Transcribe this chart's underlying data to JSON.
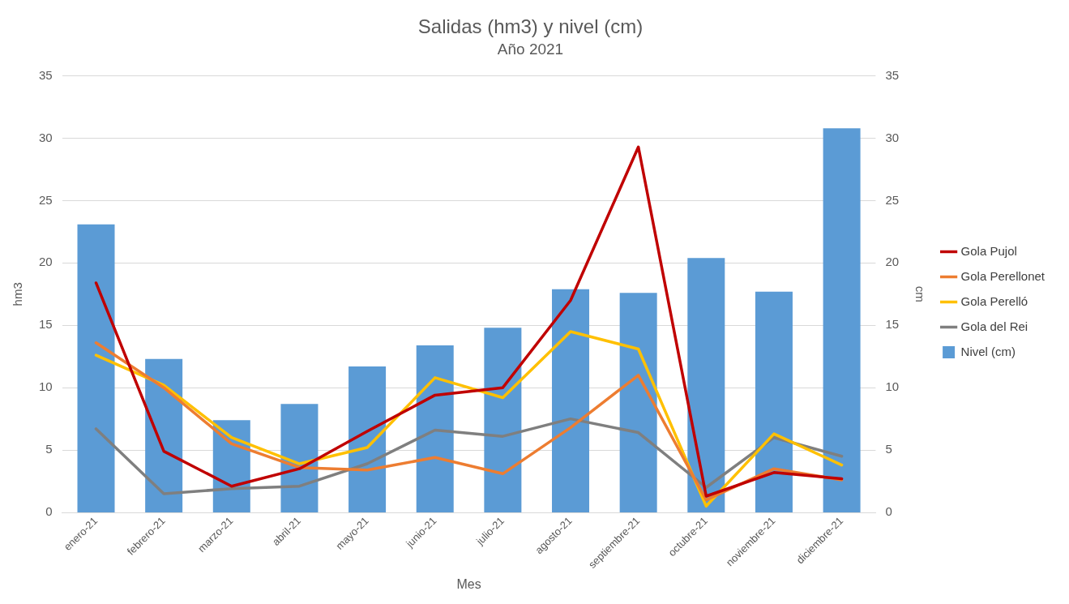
{
  "chart_data": {
    "type": "line",
    "title": "Salidas (hm3) y nivel (cm)",
    "subtitle": "Año 2021",
    "xlabel": "Mes",
    "ylabel": "hm3",
    "y2label": "cm",
    "categories": [
      "enero-21",
      "febrero-21",
      "marzo-21",
      "abril-21",
      "mayo-21",
      "junio-21",
      "julio-21",
      "agosto-21",
      "septiembre-21",
      "octubre-21",
      "noviembre-21",
      "diciembre-21"
    ],
    "series": [
      {
        "name": "Nivel (cm)",
        "type": "bar",
        "axis": "y2",
        "color": "#5b9bd5",
        "values": [
          23.1,
          12.3,
          7.4,
          8.7,
          11.7,
          13.4,
          14.8,
          17.9,
          17.6,
          20.4,
          17.7,
          30.8
        ]
      },
      {
        "name": "Gola Pujol",
        "color": "#c00000",
        "values": [
          18.4,
          4.9,
          2.1,
          3.5,
          6.5,
          9.4,
          10.0,
          17.0,
          29.3,
          1.3,
          3.2,
          2.7
        ]
      },
      {
        "name": "Gola Perellonet",
        "color": "#ed7d31",
        "values": [
          13.6,
          10.0,
          5.5,
          3.6,
          3.4,
          4.4,
          3.1,
          6.8,
          11.0,
          1.0,
          3.5,
          2.6
        ]
      },
      {
        "name": "Gola Perelló",
        "color": "#ffc000",
        "values": [
          12.6,
          10.2,
          6.0,
          3.9,
          5.2,
          10.8,
          9.2,
          14.5,
          13.1,
          0.5,
          6.3,
          3.8
        ]
      },
      {
        "name": "Gola del Rei",
        "color": "#7f7f7f",
        "values": [
          6.7,
          1.5,
          1.9,
          2.1,
          3.9,
          6.6,
          6.1,
          7.5,
          6.4,
          2.0,
          6.0,
          4.5
        ]
      }
    ],
    "ylim": [
      0,
      35
    ],
    "yticks": [
      0,
      5,
      10,
      15,
      20,
      25,
      30,
      35
    ],
    "y2lim": [
      0,
      35
    ],
    "y2ticks": [
      0,
      5,
      10,
      15,
      20,
      25,
      30,
      35
    ],
    "grid": "y",
    "legend": "right",
    "marker": "none",
    "line_style": "solid"
  }
}
